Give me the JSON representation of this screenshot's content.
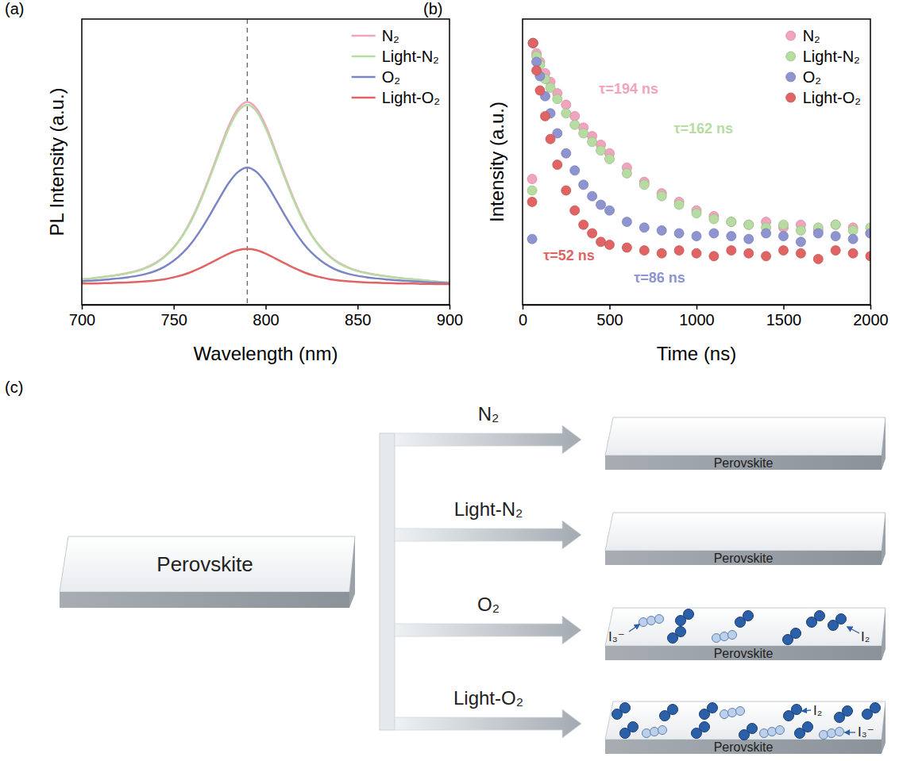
{
  "chart_data": [
    {
      "type": "line",
      "panel_label": "(a)",
      "x_label": "Wavelength (nm)",
      "y_label": "PL Intensity (a.u.)",
      "x": [
        700,
        705,
        710,
        715,
        720,
        725,
        730,
        735,
        740,
        745,
        750,
        755,
        760,
        765,
        770,
        775,
        780,
        785,
        790,
        795,
        800,
        805,
        810,
        815,
        820,
        825,
        830,
        835,
        840,
        845,
        850,
        855,
        860,
        865,
        870,
        875,
        880,
        885,
        890,
        895,
        900
      ],
      "series": [
        {
          "name": "N₂",
          "color": "#f2a3bd",
          "values": [
            0.089,
            0.092,
            0.096,
            0.1,
            0.105,
            0.111,
            0.119,
            0.13,
            0.146,
            0.169,
            0.201,
            0.245,
            0.303,
            0.375,
            0.457,
            0.544,
            0.627,
            0.687,
            0.71,
            0.687,
            0.627,
            0.544,
            0.457,
            0.375,
            0.303,
            0.245,
            0.201,
            0.169,
            0.146,
            0.13,
            0.119,
            0.111,
            0.105,
            0.1,
            0.096,
            0.092,
            0.089,
            0.086,
            0.083,
            0.08,
            0.078
          ]
        },
        {
          "name": "Light-N₂",
          "color": "#b6dca2",
          "values": [
            0.089,
            0.092,
            0.095,
            0.1,
            0.104,
            0.11,
            0.118,
            0.129,
            0.144,
            0.167,
            0.199,
            0.243,
            0.299,
            0.37,
            0.451,
            0.537,
            0.618,
            0.677,
            0.7,
            0.677,
            0.618,
            0.537,
            0.451,
            0.37,
            0.299,
            0.243,
            0.199,
            0.167,
            0.144,
            0.129,
            0.118,
            0.11,
            0.104,
            0.1,
            0.095,
            0.092,
            0.089,
            0.086,
            0.083,
            0.08,
            0.078
          ]
        },
        {
          "name": "O₂",
          "color": "#7b84c4",
          "values": [
            0.082,
            0.084,
            0.086,
            0.089,
            0.092,
            0.096,
            0.101,
            0.108,
            0.118,
            0.133,
            0.154,
            0.182,
            0.219,
            0.265,
            0.318,
            0.374,
            0.427,
            0.465,
            0.48,
            0.465,
            0.427,
            0.374,
            0.318,
            0.265,
            0.219,
            0.182,
            0.154,
            0.133,
            0.118,
            0.108,
            0.101,
            0.096,
            0.092,
            0.089,
            0.086,
            0.084,
            0.082,
            0.08,
            0.078,
            0.077,
            0.075
          ]
        },
        {
          "name": "Light-O₂",
          "color": "#e06464",
          "values": [
            0.074,
            0.074,
            0.075,
            0.076,
            0.077,
            0.078,
            0.08,
            0.082,
            0.085,
            0.089,
            0.096,
            0.104,
            0.116,
            0.13,
            0.146,
            0.163,
            0.179,
            0.191,
            0.195,
            0.191,
            0.179,
            0.163,
            0.146,
            0.13,
            0.116,
            0.104,
            0.096,
            0.089,
            0.085,
            0.082,
            0.08,
            0.078,
            0.077,
            0.076,
            0.075,
            0.074,
            0.074,
            0.073,
            0.073,
            0.072,
            0.072
          ]
        }
      ],
      "xlim": [
        700,
        900
      ],
      "ylim": [
        0,
        1
      ],
      "xticks": [
        700,
        750,
        800,
        850,
        900
      ],
      "tick_labels": "x",
      "legend": "top-right",
      "reference_line": {
        "x": 790,
        "line_style": "dashed"
      }
    },
    {
      "type": "scatter",
      "panel_label": "(b)",
      "x_label": "Time (ns)",
      "y_label": "Intensity (a.u.)",
      "marker": "circle",
      "x": [
        55,
        60,
        80,
        100,
        130,
        160,
        200,
        250,
        300,
        350,
        400,
        450,
        500,
        600,
        700,
        800,
        900,
        1000,
        1100,
        1200,
        1300,
        1400,
        1500,
        1600,
        1700,
        1800,
        1900,
        2000
      ],
      "series": [
        {
          "name": "N₂",
          "color": "#f2a3bd",
          "values": [
            0.44,
            0.916,
            0.88,
            0.85,
            0.81,
            0.78,
            0.74,
            0.7,
            0.66,
            0.62,
            0.59,
            0.56,
            0.53,
            0.48,
            0.43,
            0.39,
            0.36,
            0.33,
            0.31,
            0.29,
            0.28,
            0.29,
            0.27,
            0.28,
            0.26,
            0.28,
            0.27,
            0.25
          ]
        },
        {
          "name": "Light-N₂",
          "color": "#b6dca2",
          "values": [
            0.4,
            0.916,
            0.87,
            0.84,
            0.79,
            0.76,
            0.72,
            0.67,
            0.63,
            0.6,
            0.57,
            0.54,
            0.51,
            0.46,
            0.42,
            0.38,
            0.35,
            0.32,
            0.3,
            0.29,
            0.28,
            0.27,
            0.28,
            0.26,
            0.27,
            0.28,
            0.26,
            0.27
          ]
        },
        {
          "name": "O₂",
          "color": "#8d94d0",
          "values": [
            0.23,
            0.916,
            0.85,
            0.8,
            0.73,
            0.67,
            0.6,
            0.53,
            0.47,
            0.42,
            0.38,
            0.35,
            0.33,
            0.29,
            0.27,
            0.26,
            0.25,
            0.24,
            0.25,
            0.24,
            0.23,
            0.25,
            0.24,
            0.22,
            0.25,
            0.24,
            0.23,
            0.25
          ]
        },
        {
          "name": "Light-O₂",
          "color": "#e06464",
          "values": [
            0.36,
            0.916,
            0.82,
            0.75,
            0.66,
            0.58,
            0.49,
            0.4,
            0.33,
            0.28,
            0.25,
            0.22,
            0.21,
            0.2,
            0.19,
            0.18,
            0.19,
            0.18,
            0.17,
            0.19,
            0.18,
            0.17,
            0.19,
            0.18,
            0.16,
            0.19,
            0.18,
            0.17
          ]
        }
      ],
      "xlim": [
        0,
        2000
      ],
      "ylim": [
        0,
        1
      ],
      "xticks": [
        0,
        500,
        1000,
        1500,
        2000
      ],
      "tick_labels": "x",
      "legend": "top-right",
      "annotations": [
        {
          "text": "τ=194 ns",
          "x": 440,
          "y": 0.74,
          "color": "#f2a3bd"
        },
        {
          "text": "τ=162 ns",
          "x": 870,
          "y": 0.6,
          "color": "#b6dca2"
        },
        {
          "text": "τ=52 ns",
          "x": 120,
          "y": 0.155,
          "color": "#e06464"
        },
        {
          "text": "τ=86 ns",
          "x": 640,
          "y": 0.078,
          "color": "#8d94d0"
        }
      ]
    }
  ],
  "diagram": {
    "panel_label": "(c)",
    "start": "Perovskite",
    "branches": [
      {
        "condition": "N₂",
        "result": "Perovskite",
        "labels": []
      },
      {
        "condition": "Light-N₂",
        "result": "Perovskite",
        "labels": []
      },
      {
        "condition": "O₂",
        "result": "Perovskite",
        "labels": [
          "I₃⁻",
          "I₂"
        ]
      },
      {
        "condition": "Light-O₂",
        "result": "Perovskite",
        "labels": [
          "I₂",
          "I₃⁻"
        ]
      }
    ]
  }
}
